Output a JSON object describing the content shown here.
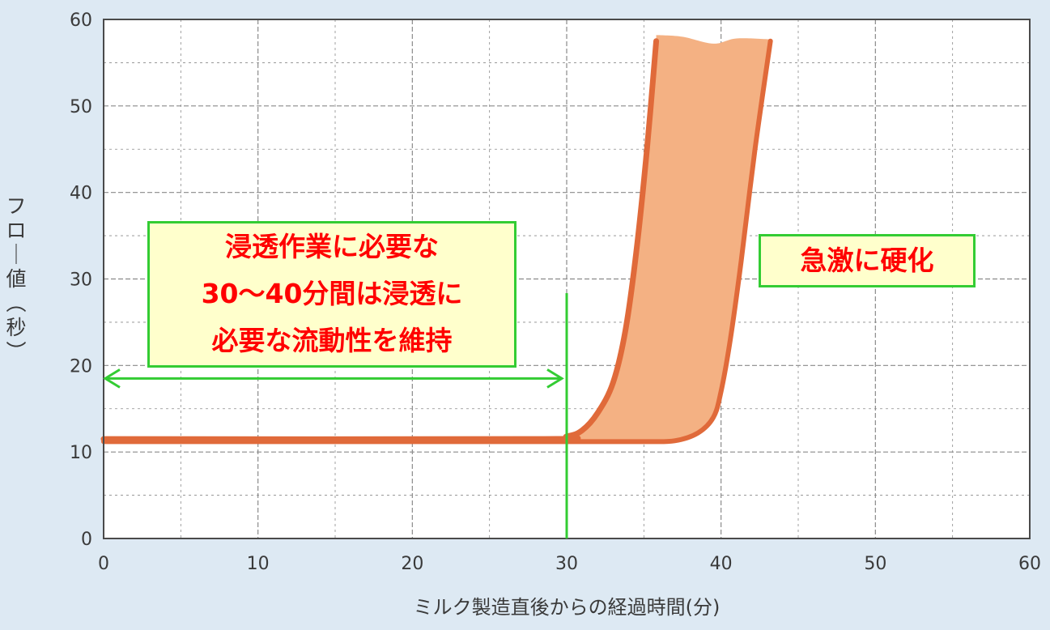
{
  "chart_data": {
    "type": "area",
    "xlabel": "ミルク製造直後からの経過時間(分)",
    "ylabel": "フロー値(秒)",
    "xlim": [
      0,
      60
    ],
    "ylim": [
      0,
      60
    ],
    "x_ticks": [
      "0",
      "10",
      "20",
      "30",
      "40",
      "50",
      "60"
    ],
    "y_ticks": [
      "0",
      "10",
      "20",
      "30",
      "40",
      "50",
      "60"
    ],
    "grid": true,
    "series": [
      {
        "values_upper": [
          [
            0,
            11.5
          ],
          [
            28,
            11.5
          ],
          [
            30,
            11.8
          ],
          [
            31,
            12.5
          ],
          [
            32,
            14.5
          ],
          [
            33,
            18
          ],
          [
            33.8,
            24
          ],
          [
            34.5,
            33
          ],
          [
            35.2,
            45
          ],
          [
            35.8,
            57.5
          ]
        ],
        "values_lower": [
          [
            0,
            11.2
          ],
          [
            30,
            11.2
          ],
          [
            35,
            11.2
          ],
          [
            37,
            11.3
          ],
          [
            38.5,
            12.2
          ],
          [
            39.5,
            14
          ],
          [
            40,
            17
          ],
          [
            40.6,
            23
          ],
          [
            41.3,
            32
          ],
          [
            42.2,
            45
          ],
          [
            43.2,
            57.5
          ]
        ],
        "band_top": [
          [
            35.8,
            58.2
          ],
          [
            37.5,
            58
          ],
          [
            39.5,
            57.2
          ],
          [
            41,
            57.8
          ],
          [
            43.2,
            57.7
          ]
        ]
      }
    ],
    "annotations": {
      "callout_left": [
        "浸透作業に必要な",
        "30〜40分間は浸透に",
        "必要な流動性を維持"
      ],
      "callout_right": "急激に硬化",
      "vertical_line_x": 30,
      "range_arrow": {
        "from": 0,
        "to": 30,
        "y": 18.5
      }
    },
    "colors": {
      "band_fill": "#f4b183",
      "band_edge": "#e06a3a",
      "grid": "#8a8a8a",
      "annotation_green": "#33cc33",
      "callout_text": "#ff0000",
      "callout_bg": "#ffffcc",
      "background": "#dde9f3"
    }
  }
}
